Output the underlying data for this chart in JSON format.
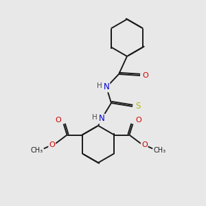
{
  "background_color": "#e8e8e8",
  "bond_color": "#1a1a1a",
  "atom_colors": {
    "N": "#0000cd",
    "O": "#cc0000",
    "S": "#b8b800",
    "C": "#1a1a1a",
    "H": "#4a4a4a"
  },
  "figsize": [
    3.0,
    3.0
  ],
  "dpi": 100
}
